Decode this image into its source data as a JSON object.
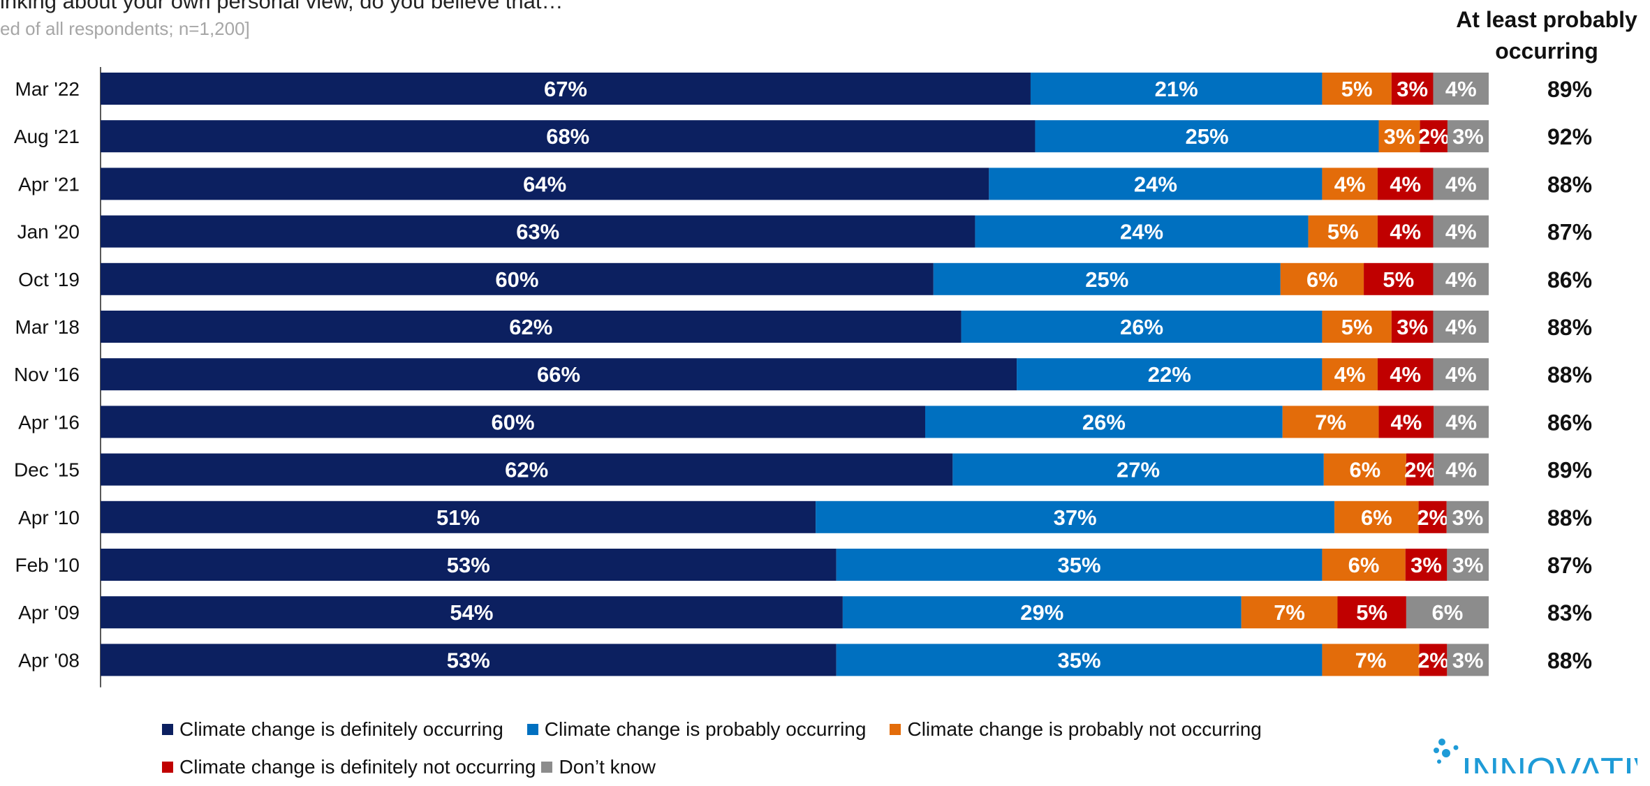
{
  "header": {
    "question": "inking about your own personal view, do you believe that…",
    "base": "ed of all respondents; n=1,200]",
    "right_column_title": "At least probably occurring"
  },
  "logo": {
    "text": "INNOVATIVE",
    "color": "#1e9bd7"
  },
  "colors": {
    "definitely": "#0c2060",
    "probably": "#0070c0",
    "probably_not": "#e36c0a",
    "definitely_not": "#c00000",
    "dont_know": "#8c8c8c"
  },
  "chart_data": {
    "type": "bar",
    "orientation": "horizontal",
    "stacked": true,
    "categories": [
      "Mar '22",
      "Aug '21",
      "Apr '21",
      "Jan '20",
      "Oct '19",
      "Mar '18",
      "Nov '16",
      "Apr '16",
      "Dec '15",
      "Apr '10",
      "Feb '10",
      "Apr '09",
      "Apr '08"
    ],
    "series": [
      {
        "name": "Climate change is definitely occurring",
        "color": "#0c2060",
        "values": [
          67,
          68,
          64,
          63,
          60,
          62,
          66,
          60,
          62,
          51,
          53,
          54,
          53
        ]
      },
      {
        "name": "Climate change is probably occurring",
        "color": "#0070c0",
        "values": [
          21,
          25,
          24,
          24,
          25,
          26,
          22,
          26,
          27,
          37,
          35,
          29,
          35
        ]
      },
      {
        "name": "Climate change is probably not occurring",
        "color": "#e36c0a",
        "values": [
          5,
          3,
          4,
          5,
          6,
          5,
          4,
          7,
          6,
          6,
          6,
          7,
          7
        ]
      },
      {
        "name": "Climate change is definitely not occurring",
        "color": "#c00000",
        "values": [
          3,
          2,
          4,
          4,
          5,
          3,
          4,
          4,
          2,
          2,
          3,
          5,
          2
        ]
      },
      {
        "name": "Don’t know",
        "color": "#8c8c8c",
        "values": [
          4,
          3,
          4,
          4,
          4,
          4,
          4,
          4,
          4,
          3,
          3,
          6,
          3
        ]
      }
    ],
    "at_least_probably_occurring": [
      89,
      92,
      88,
      87,
      86,
      88,
      88,
      86,
      89,
      88,
      87,
      83,
      88
    ],
    "value_suffix": "%",
    "legend_position": "bottom",
    "grid": false
  }
}
